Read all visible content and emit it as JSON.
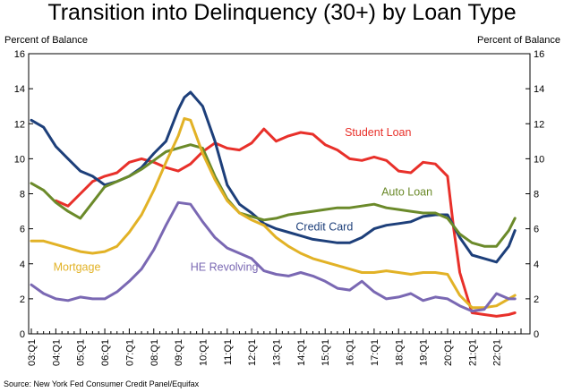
{
  "chart_data": {
    "type": "line",
    "title": "Transition into Delinquency (30+) by Loan Type",
    "ylabel_left": "Percent of Balance",
    "ylabel_right": "Percent of Balance",
    "source": "Source: New York Fed Consumer Credit Panel/Equifax",
    "ylim": [
      0,
      16
    ],
    "yticks": [
      "0",
      "2",
      "4",
      "6",
      "8",
      "10",
      "12",
      "14",
      "16"
    ],
    "xlim": [
      2003.0,
      2023.0
    ],
    "xticks": [
      "03:Q1",
      "04:Q1",
      "05:Q1",
      "06:Q1",
      "07:Q1",
      "08:Q1",
      "09:Q1",
      "10:Q1",
      "11:Q1",
      "12:Q1",
      "13:Q1",
      "14:Q1",
      "15:Q1",
      "16:Q1",
      "17:Q1",
      "18:Q1",
      "19:Q1",
      "20:Q1",
      "21:Q1",
      "22:Q1"
    ],
    "grid": false,
    "series": [
      {
        "name": "Student Loan",
        "color": "#e8302a",
        "x": [
          2004.0,
          2004.5,
          2005.0,
          2005.5,
          2006.0,
          2006.5,
          2007.0,
          2007.5,
          2008.0,
          2008.5,
          2009.0,
          2009.5,
          2010.0,
          2010.5,
          2011.0,
          2011.5,
          2012.0,
          2012.5,
          2013.0,
          2013.5,
          2014.0,
          2014.5,
          2015.0,
          2015.5,
          2016.0,
          2016.5,
          2017.0,
          2017.5,
          2018.0,
          2018.5,
          2019.0,
          2019.5,
          2020.0,
          2020.25,
          2020.5,
          2021.0,
          2021.5,
          2022.0,
          2022.5,
          2022.75
        ],
        "values": [
          7.6,
          7.3,
          8.0,
          8.7,
          9.0,
          9.2,
          9.8,
          10.0,
          9.8,
          9.5,
          9.3,
          9.7,
          10.4,
          10.9,
          10.6,
          10.5,
          10.9,
          11.7,
          11.0,
          11.3,
          11.5,
          11.4,
          10.8,
          10.5,
          10.0,
          9.9,
          10.1,
          9.9,
          9.3,
          9.2,
          9.8,
          9.7,
          9.0,
          6.0,
          3.5,
          1.2,
          1.1,
          1.0,
          1.1,
          1.2
        ]
      },
      {
        "name": "Credit Card",
        "color": "#1d3f7a",
        "x": [
          2003.0,
          2003.5,
          2004.0,
          2004.5,
          2005.0,
          2005.5,
          2006.0,
          2006.5,
          2007.0,
          2007.5,
          2008.0,
          2008.5,
          2009.0,
          2009.25,
          2009.5,
          2010.0,
          2010.5,
          2011.0,
          2011.5,
          2012.0,
          2012.5,
          2013.0,
          2013.5,
          2014.0,
          2014.5,
          2015.0,
          2015.5,
          2016.0,
          2016.5,
          2017.0,
          2017.5,
          2018.0,
          2018.5,
          2019.0,
          2019.5,
          2020.0,
          2020.5,
          2021.0,
          2021.5,
          2022.0,
          2022.5,
          2022.75
        ],
        "values": [
          12.2,
          11.8,
          10.7,
          10.0,
          9.3,
          9.0,
          8.5,
          8.7,
          9.0,
          9.5,
          10.3,
          11.0,
          12.8,
          13.5,
          13.8,
          13.0,
          11.0,
          8.5,
          7.4,
          6.9,
          6.3,
          6.0,
          5.8,
          5.6,
          5.4,
          5.3,
          5.2,
          5.2,
          5.5,
          6.0,
          6.2,
          6.3,
          6.4,
          6.7,
          6.8,
          6.8,
          5.5,
          4.5,
          4.3,
          4.1,
          5.0,
          5.9
        ]
      },
      {
        "name": "Auto Loan",
        "color": "#6b8a2a",
        "x": [
          2003.0,
          2003.5,
          2004.0,
          2004.5,
          2005.0,
          2005.5,
          2006.0,
          2006.5,
          2007.0,
          2007.5,
          2008.0,
          2008.5,
          2009.0,
          2009.5,
          2010.0,
          2010.5,
          2011.0,
          2011.5,
          2012.0,
          2012.5,
          2013.0,
          2013.5,
          2014.0,
          2014.5,
          2015.0,
          2015.5,
          2016.0,
          2016.5,
          2017.0,
          2017.5,
          2018.0,
          2018.5,
          2019.0,
          2019.5,
          2020.0,
          2020.5,
          2021.0,
          2021.5,
          2022.0,
          2022.5,
          2022.75
        ],
        "values": [
          8.6,
          8.2,
          7.5,
          7.0,
          6.6,
          7.5,
          8.4,
          8.7,
          9.0,
          9.4,
          9.9,
          10.4,
          10.6,
          10.8,
          10.6,
          9.0,
          7.7,
          6.9,
          6.7,
          6.5,
          6.6,
          6.8,
          6.9,
          7.0,
          7.1,
          7.2,
          7.2,
          7.3,
          7.4,
          7.2,
          7.1,
          7.0,
          6.9,
          6.9,
          6.6,
          5.7,
          5.2,
          5.0,
          5.0,
          5.9,
          6.6
        ]
      },
      {
        "name": "Mortgage",
        "color": "#e2b226",
        "x": [
          2003.0,
          2003.5,
          2004.0,
          2004.5,
          2005.0,
          2005.5,
          2006.0,
          2006.5,
          2007.0,
          2007.5,
          2008.0,
          2008.5,
          2009.0,
          2009.25,
          2009.5,
          2010.0,
          2010.5,
          2011.0,
          2011.5,
          2012.0,
          2012.5,
          2013.0,
          2013.5,
          2014.0,
          2014.5,
          2015.0,
          2015.5,
          2016.0,
          2016.5,
          2017.0,
          2017.5,
          2018.0,
          2018.5,
          2019.0,
          2019.5,
          2020.0,
          2020.5,
          2021.0,
          2021.5,
          2022.0,
          2022.5,
          2022.75
        ],
        "values": [
          5.3,
          5.3,
          5.1,
          4.9,
          4.7,
          4.6,
          4.7,
          5.0,
          5.8,
          6.8,
          8.2,
          9.8,
          11.3,
          12.3,
          12.2,
          10.3,
          8.8,
          7.6,
          6.9,
          6.5,
          6.2,
          5.5,
          5.0,
          4.6,
          4.3,
          4.1,
          3.9,
          3.7,
          3.5,
          3.5,
          3.6,
          3.5,
          3.4,
          3.5,
          3.5,
          3.4,
          2.2,
          1.5,
          1.5,
          1.6,
          2.0,
          2.2
        ]
      },
      {
        "name": "HE Revolving",
        "color": "#7a68b3",
        "x": [
          2003.0,
          2003.5,
          2004.0,
          2004.5,
          2005.0,
          2005.5,
          2006.0,
          2006.5,
          2007.0,
          2007.5,
          2008.0,
          2008.5,
          2009.0,
          2009.5,
          2010.0,
          2010.5,
          2011.0,
          2011.5,
          2012.0,
          2012.5,
          2013.0,
          2013.5,
          2014.0,
          2014.5,
          2015.0,
          2015.5,
          2016.0,
          2016.5,
          2017.0,
          2017.5,
          2018.0,
          2018.5,
          2019.0,
          2019.5,
          2020.0,
          2020.5,
          2021.0,
          2021.5,
          2022.0,
          2022.5,
          2022.75
        ],
        "values": [
          2.8,
          2.3,
          2.0,
          1.9,
          2.1,
          2.0,
          2.0,
          2.4,
          3.0,
          3.7,
          4.8,
          6.2,
          7.5,
          7.4,
          6.4,
          5.5,
          4.9,
          4.6,
          4.3,
          3.6,
          3.4,
          3.3,
          3.5,
          3.3,
          3.0,
          2.6,
          2.5,
          3.0,
          2.4,
          2.0,
          2.1,
          2.3,
          1.9,
          2.1,
          2.0,
          1.6,
          1.3,
          1.4,
          2.3,
          2.0,
          2.0
        ]
      }
    ],
    "annotations": [
      {
        "text": "Student Loan",
        "series": "Student Loan",
        "x": 2015.8,
        "y": 11.3,
        "color": "#e8302a"
      },
      {
        "text": "Auto Loan",
        "series": "Auto Loan",
        "x": 2017.3,
        "y": 7.9,
        "color": "#6b8a2a"
      },
      {
        "text": "Credit Card",
        "series": "Credit Card",
        "x": 2013.8,
        "y": 5.9,
        "color": "#1d3f7a"
      },
      {
        "text": "Mortgage",
        "series": "Mortgage",
        "x": 2003.9,
        "y": 3.6,
        "color": "#e2b226"
      },
      {
        "text": "HE Revolving",
        "series": "HE Revolving",
        "x": 2009.5,
        "y": 3.6,
        "color": "#7a68b3"
      }
    ]
  }
}
